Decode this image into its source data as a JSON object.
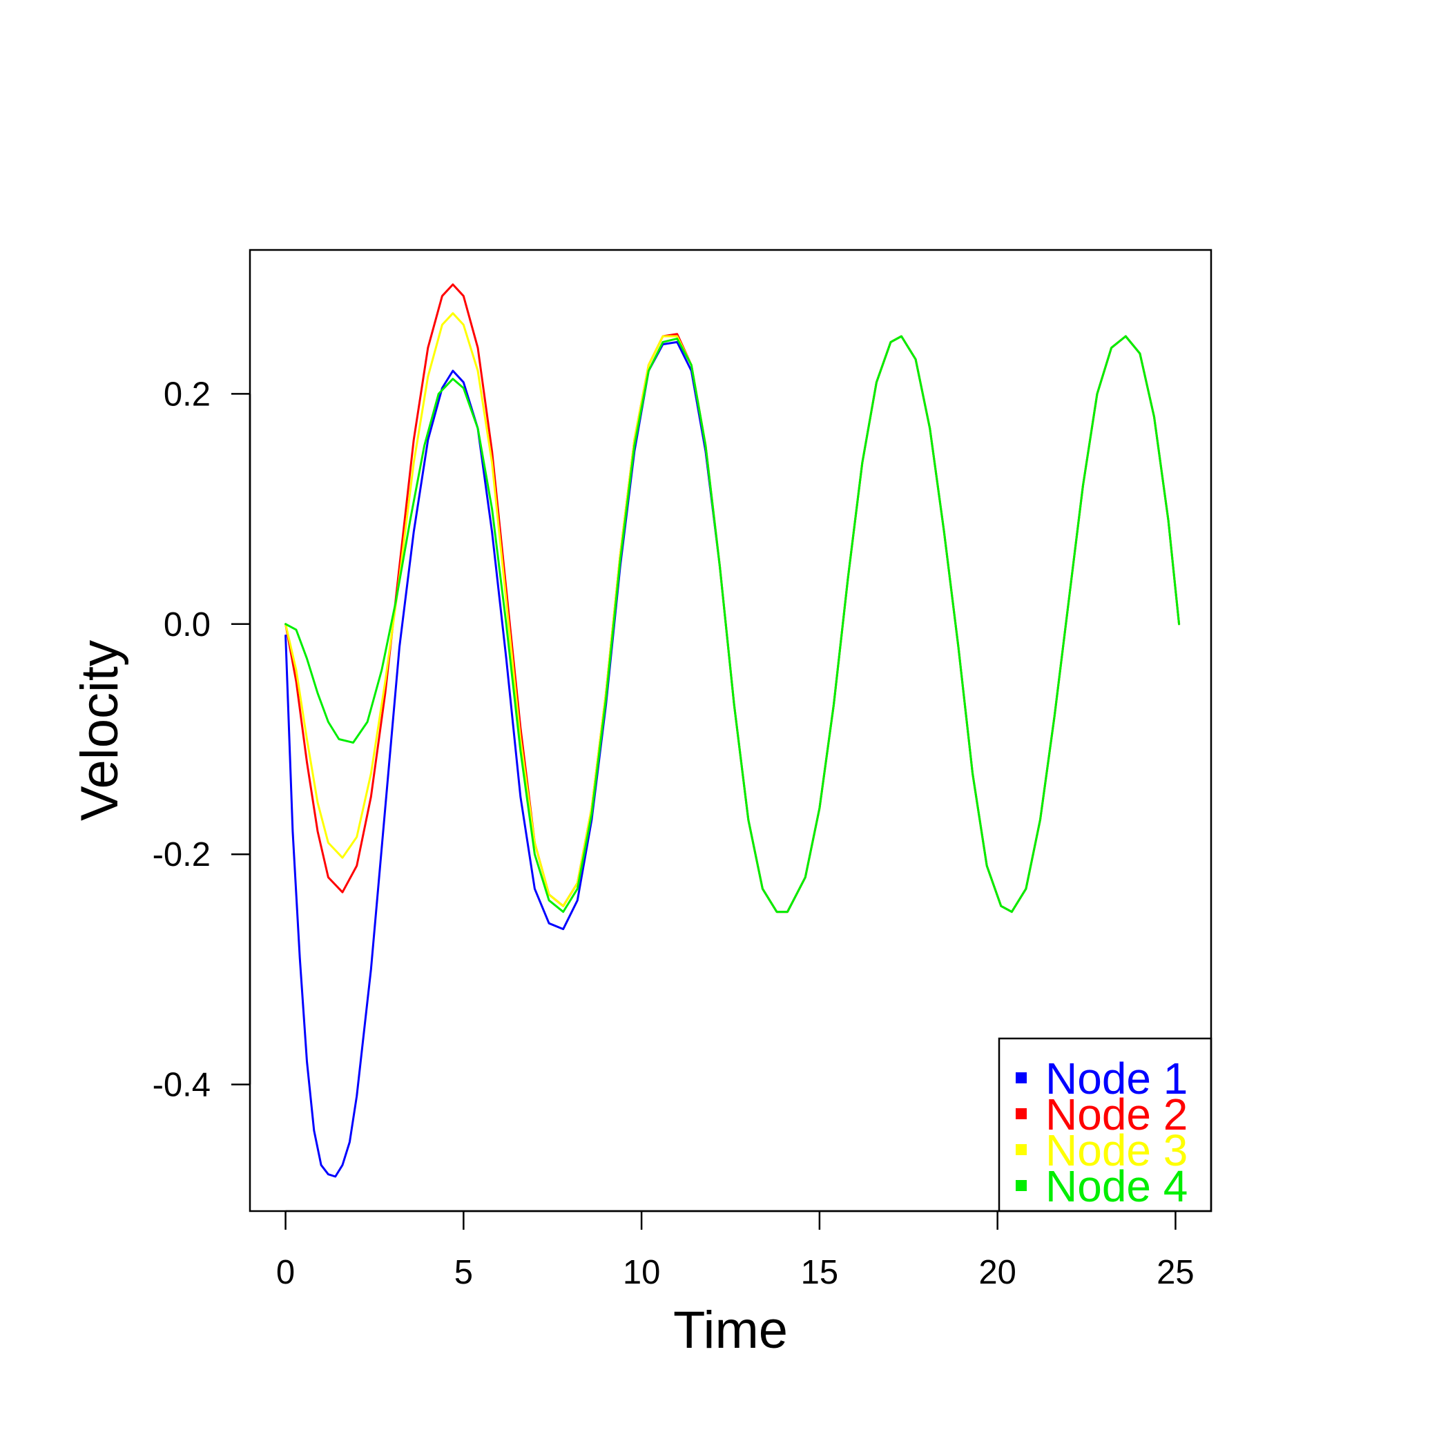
{
  "chart_data": {
    "type": "line",
    "title": "",
    "xlabel": "Time",
    "ylabel": "Velocity",
    "xlim": [
      -1,
      26
    ],
    "ylim": [
      -0.51,
      0.325
    ],
    "xticks": [
      0,
      5,
      10,
      15,
      20,
      25
    ],
    "xtick_labels": [
      "0",
      "5",
      "10",
      "15",
      "20",
      "25"
    ],
    "yticks": [
      -0.4,
      -0.2,
      0.0,
      0.2
    ],
    "ytick_labels": [
      "-0.4",
      "-0.2",
      "0.0",
      "0.2"
    ],
    "grid": false,
    "legend_position": "bottom-right",
    "series": [
      {
        "name": "Node 1",
        "color": "#0000ff",
        "points": [
          [
            0,
            -0.01
          ],
          [
            0.2,
            -0.18
          ],
          [
            0.4,
            -0.29
          ],
          [
            0.6,
            -0.38
          ],
          [
            0.8,
            -0.44
          ],
          [
            1.0,
            -0.47
          ],
          [
            1.2,
            -0.478
          ],
          [
            1.4,
            -0.48
          ],
          [
            1.6,
            -0.47
          ],
          [
            1.8,
            -0.45
          ],
          [
            2.0,
            -0.41
          ],
          [
            2.4,
            -0.3
          ],
          [
            2.8,
            -0.16
          ],
          [
            3.2,
            -0.02
          ],
          [
            3.6,
            0.08
          ],
          [
            4.0,
            0.16
          ],
          [
            4.4,
            0.205
          ],
          [
            4.7,
            0.22
          ],
          [
            5.0,
            0.21
          ],
          [
            5.4,
            0.17
          ],
          [
            5.8,
            0.08
          ],
          [
            6.2,
            -0.03
          ],
          [
            6.6,
            -0.15
          ],
          [
            7.0,
            -0.23
          ],
          [
            7.4,
            -0.26
          ],
          [
            7.8,
            -0.265
          ],
          [
            8.2,
            -0.24
          ],
          [
            8.6,
            -0.17
          ],
          [
            9.0,
            -0.07
          ],
          [
            9.4,
            0.05
          ],
          [
            9.8,
            0.15
          ],
          [
            10.2,
            0.22
          ],
          [
            10.6,
            0.243
          ],
          [
            11.0,
            0.245
          ],
          [
            11.4,
            0.22
          ],
          [
            11.8,
            0.15
          ],
          [
            12.2,
            0.05
          ],
          [
            12.6,
            -0.07
          ],
          [
            13.0,
            -0.17
          ],
          [
            13.4,
            -0.23
          ],
          [
            13.8,
            -0.25
          ],
          [
            14.1,
            -0.25
          ],
          [
            14.6,
            -0.22
          ],
          [
            15.0,
            -0.16
          ],
          [
            15.4,
            -0.07
          ],
          [
            15.8,
            0.04
          ],
          [
            16.2,
            0.14
          ],
          [
            16.6,
            0.21
          ],
          [
            17.0,
            0.245
          ],
          [
            17.3,
            0.25
          ],
          [
            17.7,
            0.23
          ],
          [
            18.1,
            0.17
          ],
          [
            18.5,
            0.08
          ],
          [
            18.9,
            -0.02
          ],
          [
            19.3,
            -0.13
          ],
          [
            19.7,
            -0.21
          ],
          [
            20.1,
            -0.245
          ],
          [
            20.4,
            -0.25
          ],
          [
            20.8,
            -0.23
          ],
          [
            21.2,
            -0.17
          ],
          [
            21.6,
            -0.08
          ],
          [
            22.0,
            0.02
          ],
          [
            22.4,
            0.12
          ],
          [
            22.8,
            0.2
          ],
          [
            23.2,
            0.24
          ],
          [
            23.6,
            0.25
          ],
          [
            24.0,
            0.235
          ],
          [
            24.4,
            0.18
          ],
          [
            24.8,
            0.09
          ],
          [
            25.1,
            0.0
          ]
        ]
      },
      {
        "name": "Node 2",
        "color": "#ff0000",
        "points": [
          [
            0,
            0
          ],
          [
            0.3,
            -0.05
          ],
          [
            0.6,
            -0.12
          ],
          [
            0.9,
            -0.18
          ],
          [
            1.2,
            -0.22
          ],
          [
            1.6,
            -0.233
          ],
          [
            2.0,
            -0.21
          ],
          [
            2.4,
            -0.15
          ],
          [
            2.8,
            -0.06
          ],
          [
            3.2,
            0.05
          ],
          [
            3.6,
            0.16
          ],
          [
            4.0,
            0.24
          ],
          [
            4.4,
            0.285
          ],
          [
            4.7,
            0.295
          ],
          [
            5.0,
            0.285
          ],
          [
            5.4,
            0.24
          ],
          [
            5.8,
            0.15
          ],
          [
            6.2,
            0.03
          ],
          [
            6.6,
            -0.09
          ],
          [
            7.0,
            -0.19
          ],
          [
            7.4,
            -0.235
          ],
          [
            7.8,
            -0.245
          ],
          [
            8.2,
            -0.225
          ],
          [
            8.6,
            -0.16
          ],
          [
            9.0,
            -0.06
          ],
          [
            9.4,
            0.06
          ],
          [
            9.8,
            0.16
          ],
          [
            10.2,
            0.225
          ],
          [
            10.6,
            0.25
          ],
          [
            11.0,
            0.252
          ],
          [
            11.4,
            0.225
          ],
          [
            11.8,
            0.155
          ],
          [
            12.2,
            0.05
          ],
          [
            12.6,
            -0.07
          ],
          [
            13.0,
            -0.17
          ],
          [
            13.4,
            -0.23
          ],
          [
            13.8,
            -0.25
          ],
          [
            14.1,
            -0.25
          ],
          [
            14.6,
            -0.22
          ],
          [
            15.0,
            -0.16
          ],
          [
            15.4,
            -0.07
          ],
          [
            15.8,
            0.04
          ],
          [
            16.2,
            0.14
          ],
          [
            16.6,
            0.21
          ],
          [
            17.0,
            0.245
          ],
          [
            17.3,
            0.25
          ],
          [
            17.7,
            0.23
          ],
          [
            18.1,
            0.17
          ],
          [
            18.5,
            0.08
          ],
          [
            18.9,
            -0.02
          ],
          [
            19.3,
            -0.13
          ],
          [
            19.7,
            -0.21
          ],
          [
            20.1,
            -0.245
          ],
          [
            20.4,
            -0.25
          ],
          [
            20.8,
            -0.23
          ],
          [
            21.2,
            -0.17
          ],
          [
            21.6,
            -0.08
          ],
          [
            22.0,
            0.02
          ],
          [
            22.4,
            0.12
          ],
          [
            22.8,
            0.2
          ],
          [
            23.2,
            0.24
          ],
          [
            23.6,
            0.25
          ],
          [
            24.0,
            0.235
          ],
          [
            24.4,
            0.18
          ],
          [
            24.8,
            0.09
          ],
          [
            25.1,
            0.0
          ]
        ]
      },
      {
        "name": "Node 3",
        "color": "#ffff00",
        "points": [
          [
            0,
            0
          ],
          [
            0.3,
            -0.04
          ],
          [
            0.6,
            -0.1
          ],
          [
            0.9,
            -0.155
          ],
          [
            1.2,
            -0.19
          ],
          [
            1.6,
            -0.203
          ],
          [
            2.0,
            -0.185
          ],
          [
            2.4,
            -0.13
          ],
          [
            2.8,
            -0.05
          ],
          [
            3.2,
            0.04
          ],
          [
            3.6,
            0.14
          ],
          [
            4.0,
            0.215
          ],
          [
            4.4,
            0.26
          ],
          [
            4.7,
            0.27
          ],
          [
            5.0,
            0.26
          ],
          [
            5.4,
            0.22
          ],
          [
            5.8,
            0.14
          ],
          [
            6.2,
            0.02
          ],
          [
            6.6,
            -0.1
          ],
          [
            7.0,
            -0.19
          ],
          [
            7.4,
            -0.235
          ],
          [
            7.8,
            -0.245
          ],
          [
            8.2,
            -0.225
          ],
          [
            8.6,
            -0.16
          ],
          [
            9.0,
            -0.06
          ],
          [
            9.4,
            0.06
          ],
          [
            9.8,
            0.16
          ],
          [
            10.2,
            0.225
          ],
          [
            10.6,
            0.25
          ],
          [
            11.0,
            0.25
          ],
          [
            11.4,
            0.225
          ],
          [
            11.8,
            0.155
          ],
          [
            12.2,
            0.05
          ],
          [
            12.6,
            -0.07
          ],
          [
            13.0,
            -0.17
          ],
          [
            13.4,
            -0.23
          ],
          [
            13.8,
            -0.25
          ],
          [
            14.1,
            -0.25
          ],
          [
            14.6,
            -0.22
          ],
          [
            15.0,
            -0.16
          ],
          [
            15.4,
            -0.07
          ],
          [
            15.8,
            0.04
          ],
          [
            16.2,
            0.14
          ],
          [
            16.6,
            0.21
          ],
          [
            17.0,
            0.245
          ],
          [
            17.3,
            0.25
          ],
          [
            17.7,
            0.23
          ],
          [
            18.1,
            0.17
          ],
          [
            18.5,
            0.08
          ],
          [
            18.9,
            -0.02
          ],
          [
            19.3,
            -0.13
          ],
          [
            19.7,
            -0.21
          ],
          [
            20.1,
            -0.245
          ],
          [
            20.4,
            -0.25
          ],
          [
            20.8,
            -0.23
          ],
          [
            21.2,
            -0.17
          ],
          [
            21.6,
            -0.08
          ],
          [
            22.0,
            0.02
          ],
          [
            22.4,
            0.12
          ],
          [
            22.8,
            0.2
          ],
          [
            23.2,
            0.24
          ],
          [
            23.6,
            0.25
          ],
          [
            24.0,
            0.235
          ],
          [
            24.4,
            0.18
          ],
          [
            24.8,
            0.09
          ],
          [
            25.1,
            0.0
          ]
        ]
      },
      {
        "name": "Node 4",
        "color": "#00ee00",
        "points": [
          [
            0,
            0
          ],
          [
            0.3,
            -0.005
          ],
          [
            0.6,
            -0.03
          ],
          [
            0.9,
            -0.06
          ],
          [
            1.2,
            -0.085
          ],
          [
            1.5,
            -0.1
          ],
          [
            1.9,
            -0.103
          ],
          [
            2.3,
            -0.085
          ],
          [
            2.7,
            -0.04
          ],
          [
            3.1,
            0.02
          ],
          [
            3.5,
            0.09
          ],
          [
            3.9,
            0.155
          ],
          [
            4.3,
            0.2
          ],
          [
            4.7,
            0.213
          ],
          [
            5.0,
            0.205
          ],
          [
            5.4,
            0.17
          ],
          [
            5.8,
            0.1
          ],
          [
            6.2,
            0.0
          ],
          [
            6.6,
            -0.11
          ],
          [
            7.0,
            -0.2
          ],
          [
            7.4,
            -0.24
          ],
          [
            7.8,
            -0.25
          ],
          [
            8.2,
            -0.23
          ],
          [
            8.6,
            -0.165
          ],
          [
            9.0,
            -0.065
          ],
          [
            9.4,
            0.055
          ],
          [
            9.8,
            0.155
          ],
          [
            10.2,
            0.22
          ],
          [
            10.6,
            0.245
          ],
          [
            11.0,
            0.248
          ],
          [
            11.4,
            0.225
          ],
          [
            11.8,
            0.155
          ],
          [
            12.2,
            0.05
          ],
          [
            12.6,
            -0.07
          ],
          [
            13.0,
            -0.17
          ],
          [
            13.4,
            -0.23
          ],
          [
            13.8,
            -0.25
          ],
          [
            14.1,
            -0.25
          ],
          [
            14.6,
            -0.22
          ],
          [
            15.0,
            -0.16
          ],
          [
            15.4,
            -0.07
          ],
          [
            15.8,
            0.04
          ],
          [
            16.2,
            0.14
          ],
          [
            16.6,
            0.21
          ],
          [
            17.0,
            0.245
          ],
          [
            17.3,
            0.25
          ],
          [
            17.7,
            0.23
          ],
          [
            18.1,
            0.17
          ],
          [
            18.5,
            0.08
          ],
          [
            18.9,
            -0.02
          ],
          [
            19.3,
            -0.13
          ],
          [
            19.7,
            -0.21
          ],
          [
            20.1,
            -0.245
          ],
          [
            20.4,
            -0.25
          ],
          [
            20.8,
            -0.23
          ],
          [
            21.2,
            -0.17
          ],
          [
            21.6,
            -0.08
          ],
          [
            22.0,
            0.02
          ],
          [
            22.4,
            0.12
          ],
          [
            22.8,
            0.2
          ],
          [
            23.2,
            0.24
          ],
          [
            23.6,
            0.25
          ],
          [
            24.0,
            0.235
          ],
          [
            24.4,
            0.18
          ],
          [
            24.8,
            0.09
          ],
          [
            25.1,
            0.0
          ]
        ]
      }
    ]
  }
}
